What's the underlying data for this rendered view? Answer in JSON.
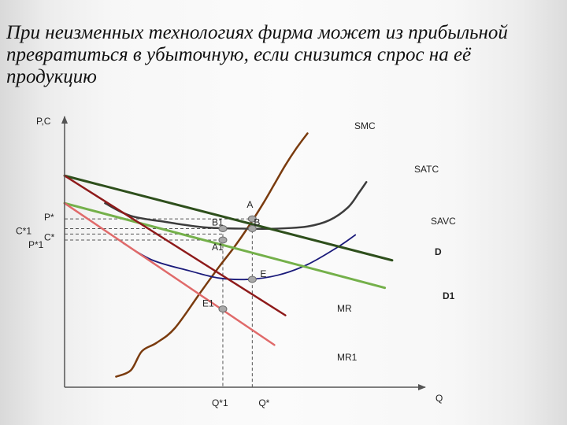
{
  "slide": {
    "title": "При неизменных технологиях фирма может из прибыльной превратиться в убыточную, если снизится спрос на её продукцию"
  },
  "colors": {
    "smc": "#7a3b0e",
    "satc": "#3c3c3c",
    "savc": "#1a1a7a",
    "d": "#2e4f1c",
    "d1": "#74b04a",
    "mr": "#8e1a1a",
    "mr1": "#e06a6a",
    "guides": "#555555",
    "axis": "#555555"
  },
  "chart_data": {
    "type": "line",
    "title": "",
    "xlabel": "Q",
    "ylabel": "P,C",
    "grid": false,
    "series": [
      {
        "name": "SMC",
        "key": "smc",
        "points": [
          [
            0.7,
            0.25
          ],
          [
            0.9,
            0.4
          ],
          [
            1.05,
            0.85
          ],
          [
            1.25,
            1.05
          ],
          [
            1.5,
            1.4
          ],
          [
            1.85,
            2.25
          ],
          [
            2.1,
            2.85
          ],
          [
            2.3,
            3.3
          ],
          [
            2.5,
            3.8
          ],
          [
            2.7,
            4.35
          ],
          [
            2.85,
            4.8
          ],
          [
            3.0,
            5.25
          ],
          [
            3.15,
            5.65
          ],
          [
            3.3,
            6.0
          ]
        ]
      },
      {
        "name": "SATC",
        "key": "satc",
        "points": [
          [
            0.55,
            4.35
          ],
          [
            0.9,
            4.05
          ],
          [
            1.4,
            3.9
          ],
          [
            1.9,
            3.78
          ],
          [
            2.4,
            3.75
          ],
          [
            2.9,
            3.75
          ],
          [
            3.3,
            3.8
          ],
          [
            3.6,
            3.95
          ],
          [
            3.85,
            4.25
          ],
          [
            4.0,
            4.6
          ],
          [
            4.1,
            4.85
          ]
        ]
      },
      {
        "name": "SAVC",
        "key": "savc",
        "points": [
          [
            0.8,
            3.4
          ],
          [
            1.2,
            3.0
          ],
          [
            1.7,
            2.75
          ],
          [
            2.1,
            2.58
          ],
          [
            2.5,
            2.55
          ],
          [
            2.9,
            2.65
          ],
          [
            3.3,
            2.9
          ],
          [
            3.7,
            3.3
          ],
          [
            3.95,
            3.6
          ]
        ]
      },
      {
        "name": "D",
        "key": "d",
        "points": [
          [
            0.0,
            5.0
          ],
          [
            4.45,
            3.0
          ]
        ]
      },
      {
        "name": "D1",
        "key": "d1",
        "points": [
          [
            0.0,
            4.35
          ],
          [
            4.35,
            2.35
          ]
        ]
      },
      {
        "name": "MR",
        "key": "mr",
        "points": [
          [
            0.0,
            5.0
          ],
          [
            3.0,
            1.7
          ]
        ]
      },
      {
        "name": "MR1",
        "key": "mr1",
        "points": [
          [
            0.0,
            4.35
          ],
          [
            2.85,
            1.0
          ]
        ]
      }
    ],
    "points": [
      {
        "name": "A",
        "x": 2.55,
        "y": 3.98
      },
      {
        "name": "B1",
        "x": 2.15,
        "y": 3.75
      },
      {
        "name": "B",
        "x": 2.55,
        "y": 3.75
      },
      {
        "name": "A1",
        "x": 2.15,
        "y": 3.48
      },
      {
        "name": "E",
        "x": 2.55,
        "y": 2.55
      },
      {
        "name": "E1",
        "x": 2.15,
        "y": 1.85
      }
    ],
    "axis_labels": {
      "y_ticks": [
        {
          "label": "P*",
          "y": 3.98
        },
        {
          "label": "C*1",
          "y": 3.75
        },
        {
          "label": "C*",
          "y": 3.62
        },
        {
          "label": "P*1",
          "y": 3.48
        }
      ],
      "x_ticks": [
        {
          "label": "Q*1",
          "x": 2.15
        },
        {
          "label": "Q*",
          "x": 2.55
        }
      ]
    },
    "xlim": [
      0,
      4.9
    ],
    "ylim": [
      0,
      6.4
    ]
  }
}
